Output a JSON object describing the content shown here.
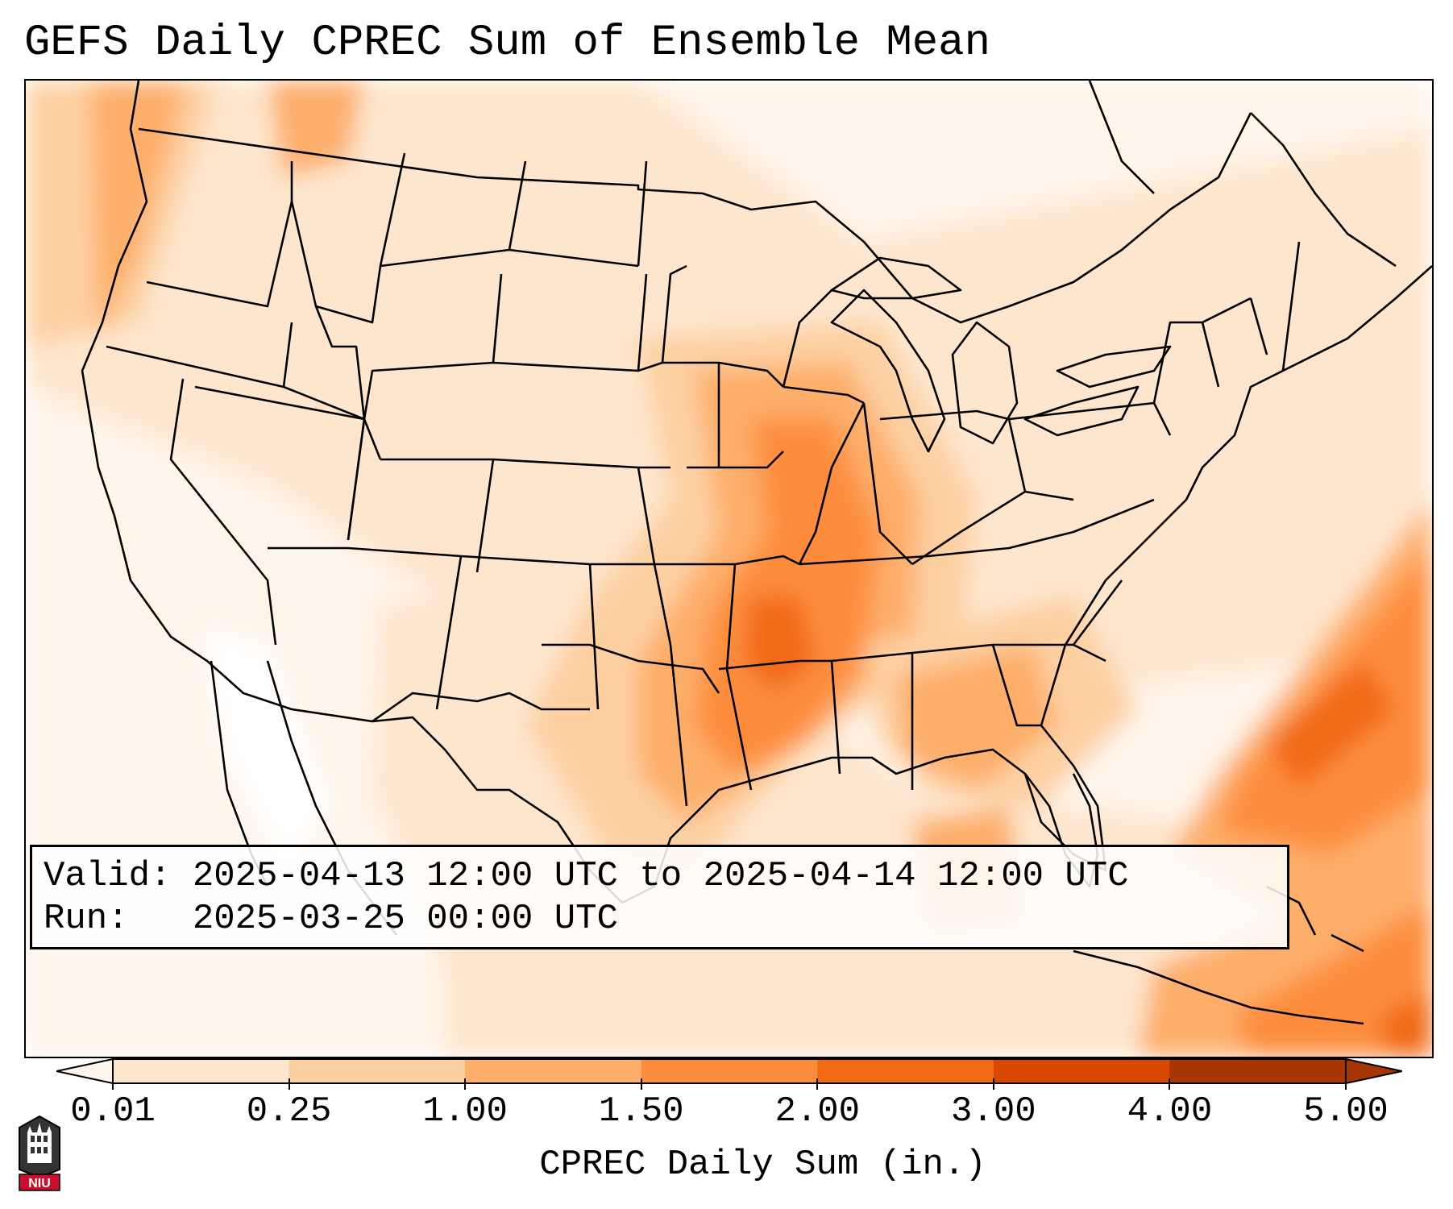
{
  "title": "GEFS Daily CPREC Sum of Ensemble Mean",
  "info": {
    "valid_line": "Valid: 2025-04-13 12:00 UTC to 2025-04-14 12:00 UTC",
    "run_line": "Run:   2025-03-25 00:00 UTC"
  },
  "colorbar": {
    "label": "CPREC Daily Sum (in.)",
    "ticks": [
      "0.01",
      "0.25",
      "1.00",
      "1.50",
      "2.00",
      "3.00",
      "4.00",
      "5.00"
    ],
    "colors": [
      "#fff5eb",
      "#fee6ce",
      "#fdd0a2",
      "#fdae6b",
      "#fd8d3c",
      "#f16913",
      "#d94801",
      "#a63603"
    ],
    "extend": "both"
  },
  "logo": {
    "text": "NIU"
  },
  "map": {
    "region": "Contiguous United States",
    "colors": {
      "light": "#fff5eb",
      "pale": "#fee6ce",
      "tan": "#fdd0a2",
      "orange": "#fdae6b",
      "deep": "#fd8d3c",
      "red": "#f16913"
    }
  }
}
